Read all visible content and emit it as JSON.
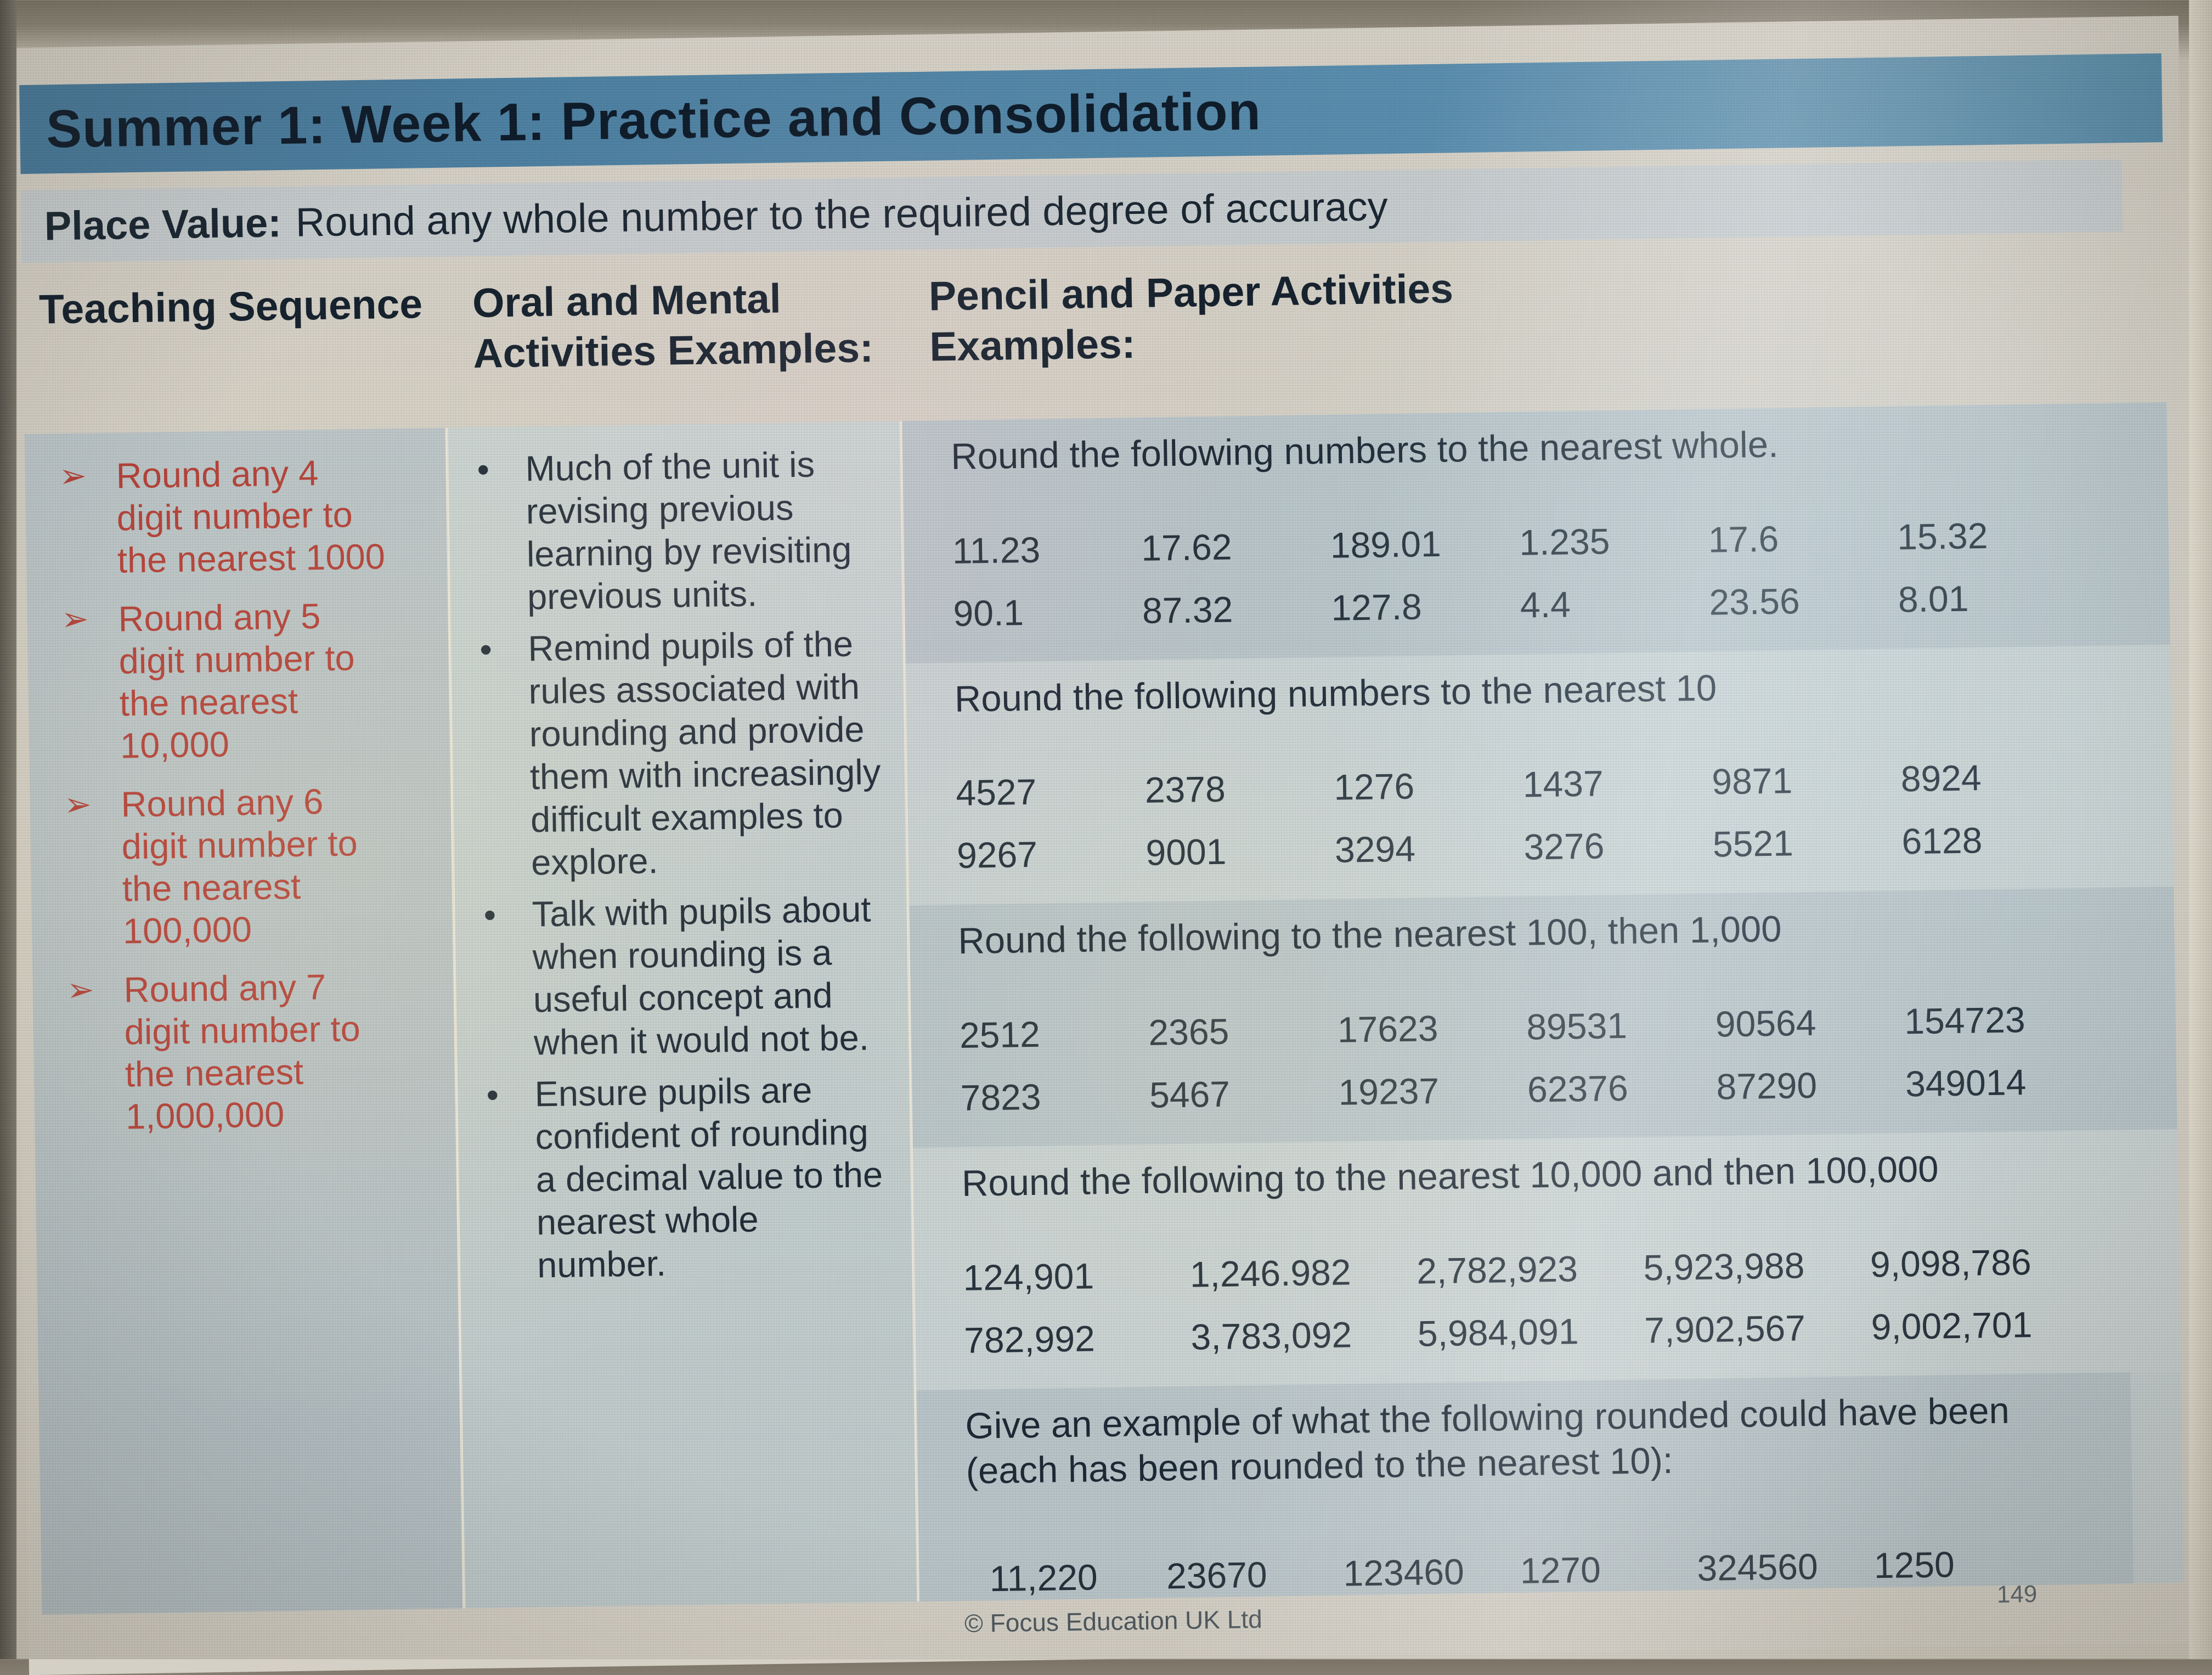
{
  "page": {
    "title": "Summer 1: Week 1: Practice and Consolidation",
    "subtitle_label": "Place Value:",
    "subtitle_text": "Round any whole number to the required degree of accuracy",
    "footer": "© Focus Education UK Ltd",
    "page_number": "149"
  },
  "icons": {
    "teaching_bullet": "➢",
    "oral_bullet": "•"
  },
  "colors": {
    "title_bar_blue": "#4d81a3",
    "title_text": "#0d1a28",
    "subtitle_bar_gray": "#c6cbcd",
    "teaching_red": "#b23b33",
    "body_text": "#1c2834",
    "column1_bg": "#b7c1c5",
    "column2_bg": "#c3cecd",
    "section_band_dark": "#b8c4c8",
    "section_band_light": "#c9d2d2",
    "page_bg": "#d5d0c5"
  },
  "columns": {
    "teaching": {
      "header": "Teaching Sequence",
      "items": [
        "Round any 4 digit number to the nearest 1000",
        "Round any 5 digit number to the nearest 10,000",
        "Round any 6 digit number to the nearest 100,000",
        "Round any 7 digit number to the nearest 1,000,000"
      ]
    },
    "oral": {
      "header": "Oral and Mental Activities Examples:",
      "bullets": [
        "Much of the unit is revising previous learning by revisiting previous units.",
        "Remind pupils of the rules associated with rounding and provide them with increasingly difficult examples to explore.",
        "Talk with pupils about when rounding is a useful concept and when it would not be.",
        "Ensure pupils are confident of rounding a decimal value to the nearest whole number."
      ]
    },
    "pencil": {
      "header": "Pencil and Paper Activities Examples:",
      "sections": [
        {
          "prompt": "Round the following numbers to the nearest whole.",
          "rows": [
            [
              "11.23",
              "17.62",
              "189.01",
              "1.235",
              "17.6",
              "15.32"
            ],
            [
              "90.1",
              "87.32",
              "127.8",
              "4.4",
              "23.56",
              "8.01"
            ]
          ]
        },
        {
          "prompt": "Round the following numbers to the nearest 10",
          "rows": [
            [
              "4527",
              "2378",
              "1276",
              "1437",
              "9871",
              "8924"
            ],
            [
              "9267",
              "9001",
              "3294",
              "3276",
              "5521",
              "6128"
            ]
          ]
        },
        {
          "prompt": "Round the following to the nearest 100, then 1,000",
          "rows": [
            [
              "2512",
              "2365",
              "17623",
              "89531",
              "90564",
              "154723"
            ],
            [
              "7823",
              "5467",
              "19237",
              "62376",
              "87290",
              "349014"
            ]
          ]
        },
        {
          "prompt": "Round the following to the nearest 10,000 and then 100,000",
          "rows": [
            [
              "124,901",
              "1,246.982",
              "2,782,923",
              "5,923,988",
              "9,098,786"
            ],
            [
              "782,992",
              "3,783,092",
              "5,984,091",
              "7,902,567",
              "9,002,701"
            ]
          ]
        },
        {
          "prompt": "Give an example of what the following rounded could have been (each has been rounded to the nearest 10):",
          "rows": [
            [
              "11,220",
              "23670",
              "123460",
              "1270",
              "324560",
              "1250"
            ]
          ]
        }
      ]
    }
  }
}
